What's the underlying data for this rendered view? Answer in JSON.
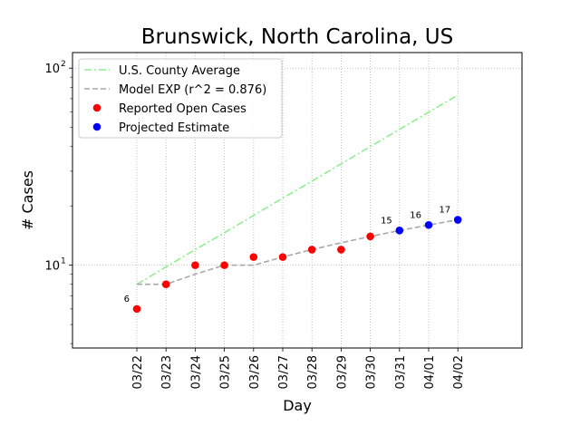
{
  "chart_data": {
    "type": "line",
    "title": "Brunswick, North Carolina, US",
    "xlabel": "Day",
    "ylabel": "# Cases",
    "y_scale": "log",
    "ylim": [
      3.8,
      120
    ],
    "y_ticks": [
      {
        "value": 10,
        "base": "10",
        "exp": "1"
      },
      {
        "value": 100,
        "base": "10",
        "exp": "2"
      }
    ],
    "categories": [
      "03/22",
      "03/23",
      "03/24",
      "03/25",
      "03/26",
      "03/27",
      "03/28",
      "03/29",
      "03/30",
      "03/31",
      "04/01",
      "04/02"
    ],
    "grid": true,
    "legend_position": "top-left",
    "series": [
      {
        "name": "U.S. County Average",
        "kind": "line",
        "style": "dashdot",
        "color": "#90ee90",
        "values": [
          8,
          9.8,
          12,
          14.6,
          17.9,
          21.9,
          26.7,
          32.7,
          40,
          48.9,
          59.8,
          73
        ]
      },
      {
        "name": "Model EXP (r^2 = 0.876)",
        "kind": "line",
        "style": "dashed",
        "color": "#a9a9a9",
        "values": [
          8,
          8,
          9,
          10,
          10,
          11,
          12,
          13,
          14,
          15,
          16,
          17
        ]
      },
      {
        "name": "Reported Open Cases",
        "kind": "scatter",
        "color": "#ff0000",
        "values": [
          6,
          8,
          10,
          10,
          11,
          11,
          12,
          12,
          14,
          null,
          null,
          null
        ]
      },
      {
        "name": "Projected Estimate",
        "kind": "scatter",
        "color": "#0000ff",
        "values": [
          null,
          null,
          null,
          null,
          null,
          null,
          null,
          null,
          null,
          15,
          16,
          17
        ]
      }
    ],
    "annotations": [
      {
        "text": "6",
        "index": 0,
        "value": 6,
        "color": "#ff0000"
      },
      {
        "text": "15",
        "index": 9,
        "value": 15,
        "color": "#0000ff"
      },
      {
        "text": "16",
        "index": 10,
        "value": 16,
        "color": "#0000ff"
      },
      {
        "text": "17",
        "index": 11,
        "value": 17,
        "color": "#0000ff"
      }
    ]
  }
}
